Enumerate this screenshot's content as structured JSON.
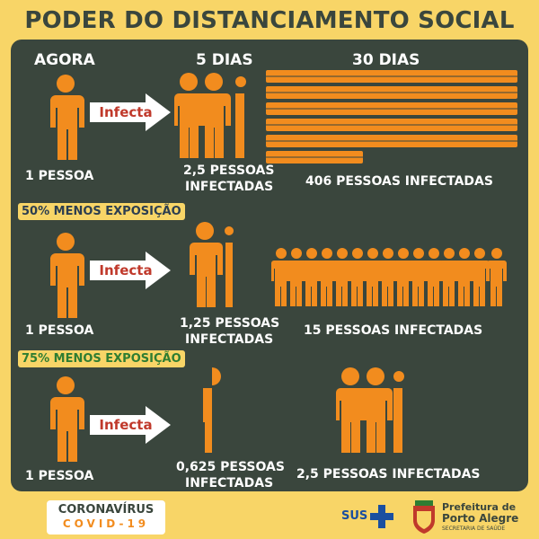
{
  "title": "PODER DO DISTANCIAMENTO SOCIAL",
  "columns": {
    "now": "AGORA",
    "five_days": "5 DIAS",
    "thirty_days": "30 DIAS"
  },
  "arrow_label": "Infecta",
  "rows": [
    {
      "badge": "",
      "source": "1 PESSOA",
      "five_days": [
        "2,5 PESSOAS",
        "INFECTADAS"
      ],
      "thirty_days": "406 PESSOAS INFECTADAS"
    },
    {
      "badge": "50% MENOS EXPOSIÇÃO",
      "source": "1 PESSOA",
      "five_days": [
        "1,25 PESSOAS",
        "INFECTADAS"
      ],
      "thirty_days": "15 PESSOAS INFECTADAS"
    },
    {
      "badge": "75% MENOS EXPOSIÇÃO",
      "source": "1 PESSOA",
      "five_days": [
        "0,625 PESSOAS",
        "INFECTADAS"
      ],
      "thirty_days": "2,5 PESSOAS INFECTADAS"
    }
  ],
  "colors": {
    "figure": "#f28c1e",
    "panel": "#3a463d",
    "background": "#f8d567",
    "arrow_text": "#c0392b",
    "badge1_text": "#2c3e50",
    "badge2_text": "#2e7d32"
  },
  "footer": {
    "covid_logo": {
      "line1": "CORONAVÍRUS",
      "line2": "COVID-19"
    },
    "sus_logo": "SUS",
    "prefeitura": {
      "line1": "Prefeitura de",
      "line2": "Porto Alegre",
      "line3": "SECRETARIA DE SAÚDE"
    }
  }
}
